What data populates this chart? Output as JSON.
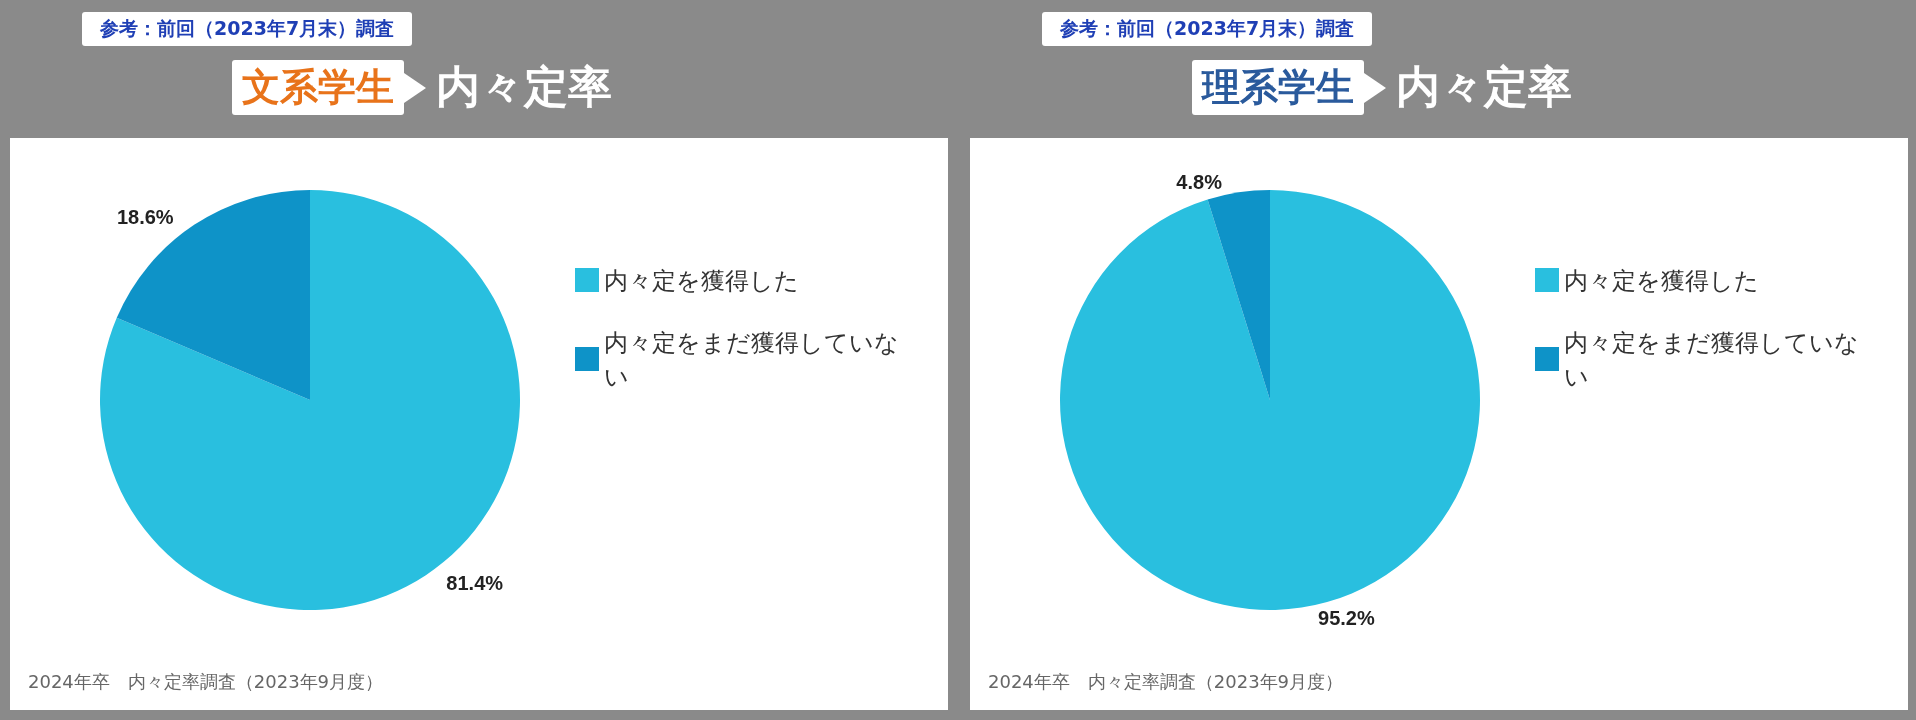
{
  "chart_data": [
    {
      "type": "pie",
      "title": "文系学生",
      "subtitle": "内々定率",
      "categories": [
        "内々定を獲得した",
        "内々定をまだ獲得していない"
      ],
      "values": [
        81.4,
        18.6
      ],
      "colors": [
        "#29bfdf",
        "#0e93c8"
      ],
      "value_labels": [
        "81.4%",
        "18.6%"
      ],
      "legend": "right",
      "annotations": [
        "参考：前回（2023年7月末）調査",
        "2024年卒　内々定率調査（2023年9月度）"
      ]
    },
    {
      "type": "pie",
      "title": "理系学生",
      "subtitle": "内々定率",
      "categories": [
        "内々定を獲得した",
        "内々定をまだ獲得していない"
      ],
      "values": [
        95.2,
        4.8
      ],
      "colors": [
        "#29bfdf",
        "#0e93c8"
      ],
      "value_labels": [
        "95.2%",
        "4.8%"
      ],
      "legend": "right",
      "annotations": [
        "参考：前回（2023年7月末）調査",
        "2024年卒　内々定率調査（2023年9月度）"
      ]
    }
  ]
}
